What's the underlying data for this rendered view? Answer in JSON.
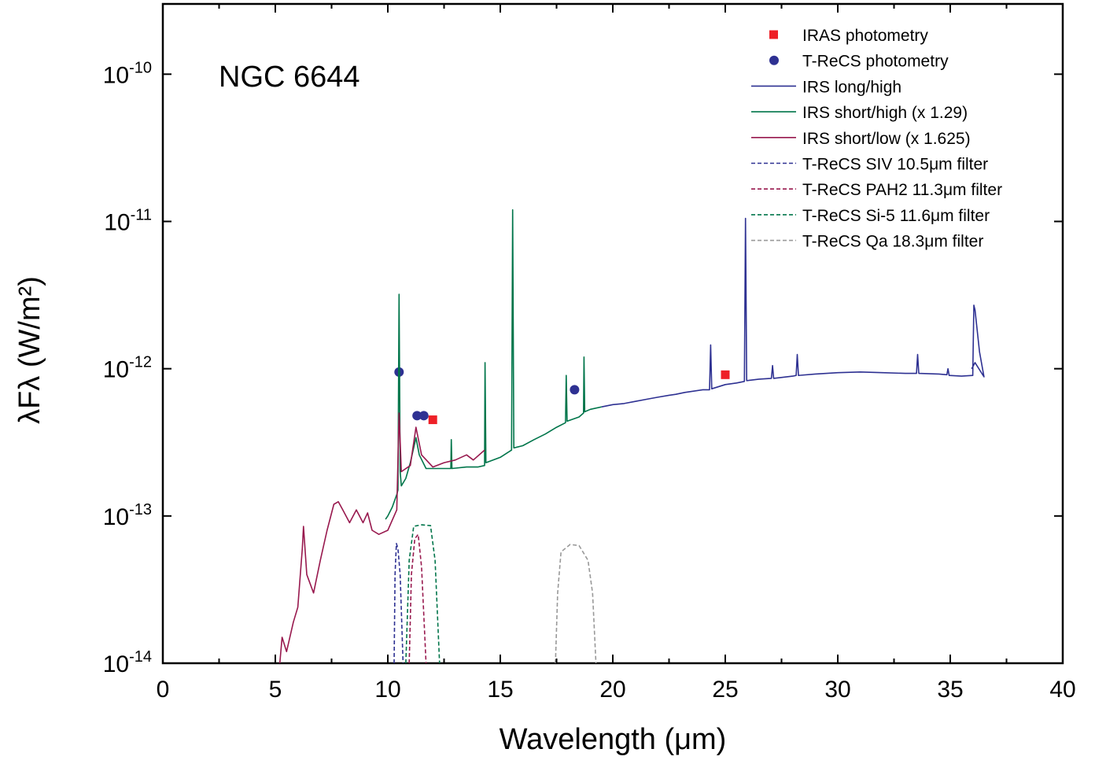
{
  "chart_data": {
    "type": "line",
    "annotation": "NGC 6644",
    "xlabel": "Wavelength (μm)",
    "ylabel": "λFλ (W/m²)",
    "xlim": [
      0,
      40
    ],
    "ylim": [
      1e-14,
      3e-10
    ],
    "yscale": "log",
    "grid": false,
    "legend_position": "top-right",
    "x_ticks": [
      "0",
      "5",
      "10",
      "15",
      "20",
      "25",
      "30",
      "35",
      "40"
    ],
    "y_ticks": [
      {
        "base": "10",
        "exp": "-14"
      },
      {
        "base": "10",
        "exp": "-13"
      },
      {
        "base": "10",
        "exp": "-12"
      },
      {
        "base": "10",
        "exp": "-11"
      },
      {
        "base": "10",
        "exp": "-10"
      }
    ],
    "legend": [
      "IRAS photometry",
      "T-ReCS photometry",
      "IRS long/high",
      "IRS short/high (x 1.29)",
      "IRS short/low (x 1.625)",
      "T-ReCS SIV 10.5μm filter",
      "T-ReCS PAH2 11.3μm filter",
      "T-ReCS Si-5 11.6μm filter",
      "T-ReCS Qa 18.3μm filter"
    ],
    "series": [
      {
        "name": "IRAS photometry",
        "kind": "marker",
        "marker": "square",
        "color": "#ee2027",
        "points": [
          [
            12.0,
            4.5e-13
          ],
          [
            25.0,
            9.1e-13
          ]
        ]
      },
      {
        "name": "T-ReCS photometry",
        "kind": "marker",
        "marker": "circle",
        "color": "#2e3192",
        "points": [
          [
            10.5,
            9.5e-13
          ],
          [
            11.3,
            4.8e-13
          ],
          [
            11.6,
            4.8e-13
          ],
          [
            18.3,
            7.2e-13
          ]
        ]
      },
      {
        "name": "IRS long/high",
        "kind": "line",
        "dash": false,
        "color": "#2e3192",
        "points": [
          [
            19.5,
            5.5e-13
          ],
          [
            20.0,
            5.7e-13
          ],
          [
            20.5,
            5.8e-13
          ],
          [
            21.0,
            6e-13
          ],
          [
            21.5,
            6.2e-13
          ],
          [
            22.0,
            6.4e-13
          ],
          [
            22.5,
            6.6e-13
          ],
          [
            22.8,
            6.7e-13
          ],
          [
            23.2,
            6.9e-13
          ],
          [
            24.0,
            7.2e-13
          ],
          [
            24.3,
            7.2e-13
          ],
          [
            24.35,
            1.45e-12
          ],
          [
            24.4,
            7.3e-13
          ],
          [
            25.0,
            7.8e-13
          ],
          [
            25.5,
            8e-13
          ],
          [
            25.85,
            8.2e-13
          ],
          [
            25.9,
            1.05e-11
          ],
          [
            25.95,
            8.3e-13
          ],
          [
            26.5,
            8.5e-13
          ],
          [
            27.05,
            8.6e-13
          ],
          [
            27.1,
            1.05e-12
          ],
          [
            27.15,
            8.6e-13
          ],
          [
            28.0,
            8.9e-13
          ],
          [
            28.15,
            9e-13
          ],
          [
            28.2,
            1.25e-12
          ],
          [
            28.25,
            9e-13
          ],
          [
            29.0,
            9.2e-13
          ],
          [
            30.0,
            9.4e-13
          ],
          [
            31.0,
            9.5e-13
          ],
          [
            32.0,
            9.4e-13
          ],
          [
            33.0,
            9.3e-13
          ],
          [
            33.5,
            9.3e-13
          ],
          [
            33.55,
            1.25e-12
          ],
          [
            33.6,
            9.3e-13
          ],
          [
            34.5,
            9.2e-13
          ],
          [
            34.85,
            9.1e-13
          ],
          [
            34.9,
            1e-12
          ],
          [
            34.95,
            9e-13
          ],
          [
            35.5,
            8.9e-13
          ],
          [
            36.0,
            9e-13
          ],
          [
            36.05,
            2.7e-12
          ],
          [
            36.1,
            2.5e-12
          ],
          [
            36.3,
            1.3e-12
          ],
          [
            36.5,
            8.8e-13
          ],
          [
            36.1,
            1.1e-12
          ],
          [
            35.95,
            1e-12
          ]
        ]
      },
      {
        "name": "IRS short/high (x 1.29)",
        "kind": "line",
        "dash": false,
        "color": "#00754a",
        "points": [
          [
            9.9,
            9.5e-14
          ],
          [
            10.0,
            1e-13
          ],
          [
            10.2,
            1.15e-13
          ],
          [
            10.4,
            1.4e-13
          ],
          [
            10.45,
            1.5e-13
          ],
          [
            10.5,
            3.2e-12
          ],
          [
            10.55,
            2e-13
          ],
          [
            10.6,
            1.6e-13
          ],
          [
            10.8,
            1.8e-13
          ],
          [
            11.0,
            2.3e-13
          ],
          [
            11.25,
            3.4e-13
          ],
          [
            11.4,
            2.6e-13
          ],
          [
            11.7,
            2.1e-13
          ],
          [
            12.0,
            2.1e-13
          ],
          [
            12.5,
            2.1e-13
          ],
          [
            12.8,
            2.1e-13
          ],
          [
            12.82,
            3.3e-13
          ],
          [
            12.85,
            2.1e-13
          ],
          [
            13.5,
            2.15e-13
          ],
          [
            14.0,
            2.15e-13
          ],
          [
            14.3,
            2.2e-13
          ],
          [
            14.32,
            1.1e-12
          ],
          [
            14.36,
            2.3e-13
          ],
          [
            15.0,
            2.5e-13
          ],
          [
            15.5,
            2.8e-13
          ],
          [
            15.55,
            1.2e-11
          ],
          [
            15.6,
            2.9e-13
          ],
          [
            16.0,
            3e-13
          ],
          [
            16.5,
            3.3e-13
          ],
          [
            17.0,
            3.6e-13
          ],
          [
            17.5,
            4e-13
          ],
          [
            17.9,
            4.3e-13
          ],
          [
            17.93,
            9e-13
          ],
          [
            17.97,
            4.4e-13
          ],
          [
            18.5,
            4.7e-13
          ],
          [
            18.7,
            5e-13
          ],
          [
            18.72,
            1.2e-12
          ],
          [
            18.75,
            5.1e-13
          ],
          [
            19.0,
            5.3e-13
          ],
          [
            19.5,
            5.5e-13
          ]
        ]
      },
      {
        "name": "IRS short/low (x 1.625)",
        "kind": "line",
        "dash": false,
        "color": "#98194e",
        "points": [
          [
            5.2,
            1e-14
          ],
          [
            5.3,
            1.5e-14
          ],
          [
            5.5,
            1.2e-14
          ],
          [
            5.8,
            1.9e-14
          ],
          [
            6.0,
            2.4e-14
          ],
          [
            6.2,
            6e-14
          ],
          [
            6.25,
            8.5e-14
          ],
          [
            6.4,
            4e-14
          ],
          [
            6.7,
            3e-14
          ],
          [
            7.0,
            5e-14
          ],
          [
            7.3,
            8e-14
          ],
          [
            7.6,
            1.2e-13
          ],
          [
            7.8,
            1.25e-13
          ],
          [
            8.0,
            1.1e-13
          ],
          [
            8.3,
            9e-14
          ],
          [
            8.6,
            1.1e-13
          ],
          [
            8.9,
            9e-14
          ],
          [
            9.1,
            1.05e-13
          ],
          [
            9.3,
            8e-14
          ],
          [
            9.6,
            7.5e-14
          ],
          [
            10.0,
            8e-14
          ],
          [
            10.4,
            1.1e-13
          ],
          [
            10.5,
            5e-13
          ],
          [
            10.6,
            2e-13
          ],
          [
            11.0,
            2.2e-13
          ],
          [
            11.25,
            4e-13
          ],
          [
            11.5,
            2.6e-13
          ],
          [
            12.0,
            2.15e-13
          ],
          [
            12.5,
            2.3e-13
          ],
          [
            13.0,
            2.4e-13
          ],
          [
            13.5,
            2.6e-13
          ],
          [
            13.8,
            2.4e-13
          ],
          [
            14.3,
            2.8e-13
          ]
        ]
      },
      {
        "name": "T-ReCS SIV 10.5μm filter",
        "kind": "line",
        "dash": true,
        "color": "#2e3192",
        "points": [
          [
            10.28,
            1e-14
          ],
          [
            10.32,
            4e-14
          ],
          [
            10.38,
            6.5e-14
          ],
          [
            10.45,
            6e-14
          ],
          [
            10.55,
            4e-14
          ],
          [
            10.68,
            1e-14
          ]
        ]
      },
      {
        "name": "T-ReCS PAH2 11.3μm filter",
        "kind": "line",
        "dash": true,
        "color": "#98194e",
        "points": [
          [
            10.95,
            1e-14
          ],
          [
            11.05,
            4e-14
          ],
          [
            11.2,
            7e-14
          ],
          [
            11.35,
            7.5e-14
          ],
          [
            11.5,
            4.5e-14
          ],
          [
            11.7,
            1e-14
          ]
        ]
      },
      {
        "name": "T-ReCS Si-5 11.6μm filter",
        "kind": "line",
        "dash": true,
        "color": "#00754a",
        "points": [
          [
            10.8,
            1e-14
          ],
          [
            10.95,
            5e-14
          ],
          [
            11.15,
            8.5e-14
          ],
          [
            11.5,
            8.7e-14
          ],
          [
            11.9,
            8.6e-14
          ],
          [
            12.1,
            5e-14
          ],
          [
            12.3,
            1e-14
          ]
        ]
      },
      {
        "name": "T-ReCS Qa 18.3μm filter",
        "kind": "line",
        "dash": true,
        "color": "#999999",
        "points": [
          [
            17.45,
            1e-14
          ],
          [
            17.55,
            3e-14
          ],
          [
            17.7,
            5.7e-14
          ],
          [
            18.1,
            6.4e-14
          ],
          [
            18.5,
            6.3e-14
          ],
          [
            18.9,
            5e-14
          ],
          [
            19.1,
            3e-14
          ],
          [
            19.25,
            1e-14
          ]
        ]
      }
    ]
  }
}
